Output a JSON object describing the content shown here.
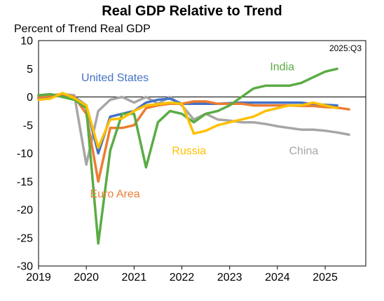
{
  "chart_data": {
    "type": "line",
    "title": "Real GDP Relative to Trend",
    "ylabel": "Percent of Trend Real GDP",
    "note": "2025:Q3",
    "ylim": [
      -30,
      10
    ],
    "yticks": [
      10,
      5,
      0,
      -5,
      -10,
      -15,
      -20,
      -25,
      -30
    ],
    "xlim": [
      2019,
      2025.85
    ],
    "xticks": [
      2019,
      2020,
      2021,
      2022,
      2023,
      2024,
      2025
    ],
    "grid": false,
    "series": [
      {
        "name": "China",
        "color": "#a6a6a6",
        "x": [
          2019,
          2019.25,
          2019.5,
          2019.75,
          2020,
          2020.25,
          2020.5,
          2020.75,
          2021,
          2021.25,
          2021.5,
          2021.75,
          2022,
          2022.25,
          2022.5,
          2022.75,
          2023,
          2023.25,
          2023.5,
          2023.75,
          2024,
          2024.25,
          2024.5,
          2024.75,
          2025,
          2025.25,
          2025.5
        ],
        "values": [
          0,
          0.3,
          0.5,
          0.3,
          -12,
          -2.5,
          -0.5,
          0,
          -1,
          0,
          -1.2,
          0,
          -1.5,
          -4,
          -3,
          -4,
          -4.2,
          -4.5,
          -4.5,
          -4.8,
          -5.2,
          -5.5,
          -5.8,
          -5.8,
          -6,
          -6.3,
          -6.7
        ]
      },
      {
        "name": "United States",
        "color": "#4472c4",
        "x": [
          2019,
          2019.25,
          2019.5,
          2019.75,
          2020,
          2020.25,
          2020.5,
          2020.75,
          2021,
          2021.25,
          2021.5,
          2021.75,
          2022,
          2022.25,
          2022.5,
          2022.75,
          2023,
          2023.25,
          2023.5,
          2023.75,
          2024,
          2024.25,
          2024.5,
          2024.75,
          2025,
          2025.25
        ],
        "values": [
          -0.3,
          0,
          0.3,
          0,
          -1.5,
          -10,
          -3.5,
          -3,
          -2.5,
          -1,
          -0.5,
          -0.3,
          -1.2,
          -1.2,
          -1.2,
          -1.2,
          -1.1,
          -1,
          -1,
          -1,
          -1,
          -1,
          -1,
          -1.3,
          -1.4,
          -1.5
        ]
      },
      {
        "name": "Euro Area",
        "color": "#ed7d31",
        "x": [
          2019,
          2019.25,
          2019.5,
          2019.75,
          2020,
          2020.25,
          2020.5,
          2020.75,
          2021,
          2021.25,
          2021.5,
          2021.75,
          2022,
          2022.25,
          2022.5,
          2022.75,
          2023,
          2023.25,
          2023.5,
          2023.75,
          2024,
          2024.25,
          2024.5,
          2024.75,
          2025,
          2025.25,
          2025.5
        ],
        "values": [
          0,
          0.2,
          0.5,
          0,
          -3,
          -15,
          -5.5,
          -5.5,
          -5,
          -2,
          -1.5,
          -1.2,
          -1.2,
          -0.8,
          -0.8,
          -1.2,
          -1.2,
          -1.2,
          -1.5,
          -1.5,
          -1.5,
          -1.5,
          -1.6,
          -1.6,
          -1.8,
          -1.9,
          -2.2
        ]
      },
      {
        "name": "India",
        "color": "#5aac44",
        "x": [
          2019,
          2019.25,
          2019.5,
          2019.75,
          2020,
          2020.25,
          2020.5,
          2020.75,
          2021,
          2021.25,
          2021.5,
          2021.75,
          2022,
          2022.25,
          2022.5,
          2022.75,
          2023,
          2023.25,
          2023.5,
          2023.75,
          2024,
          2024.25,
          2024.5,
          2024.75,
          2025,
          2025.25
        ],
        "values": [
          0.3,
          0.5,
          0,
          -0.5,
          -2,
          -26,
          -9.5,
          -3,
          -3,
          -12.5,
          -4.5,
          -2.5,
          -3,
          -4.5,
          -3,
          -2.5,
          -1.5,
          0,
          1.5,
          2,
          2,
          2,
          2.5,
          3.5,
          4.5,
          5
        ]
      },
      {
        "name": "Russia",
        "color": "#ffc000",
        "x": [
          2019,
          2019.25,
          2019.5,
          2019.75,
          2020,
          2020.25,
          2020.5,
          2020.75,
          2021,
          2021.25,
          2021.5,
          2021.75,
          2022,
          2022.25,
          2022.5,
          2022.75,
          2023,
          2023.25,
          2023.5,
          2023.75,
          2024,
          2024.25,
          2024.5,
          2024.75,
          2025,
          2025.25
        ],
        "values": [
          -0.5,
          -0.3,
          0.7,
          -0.2,
          -1.5,
          -9,
          -4,
          -3.8,
          -2.5,
          -1.5,
          -1.3,
          -1,
          -1.2,
          -6.5,
          -6,
          -5,
          -4.5,
          -4,
          -3.5,
          -2.5,
          -2,
          -1.5,
          -1.5,
          -1,
          -1.5,
          -2
        ]
      }
    ],
    "labels": [
      {
        "text": "United States",
        "series": "United States",
        "x": 2020.6,
        "y": 2.8
      },
      {
        "text": "India",
        "series": "India",
        "x": 2024.1,
        "y": 4.7
      },
      {
        "text": "Russia",
        "series": "Russia",
        "x": 2022.15,
        "y": -10.2
      },
      {
        "text": "China",
        "series": "China",
        "x": 2024.55,
        "y": -10.2
      },
      {
        "text": "Euro Area",
        "series": "Euro Area",
        "x": 2020.6,
        "y": -17.8
      }
    ]
  }
}
